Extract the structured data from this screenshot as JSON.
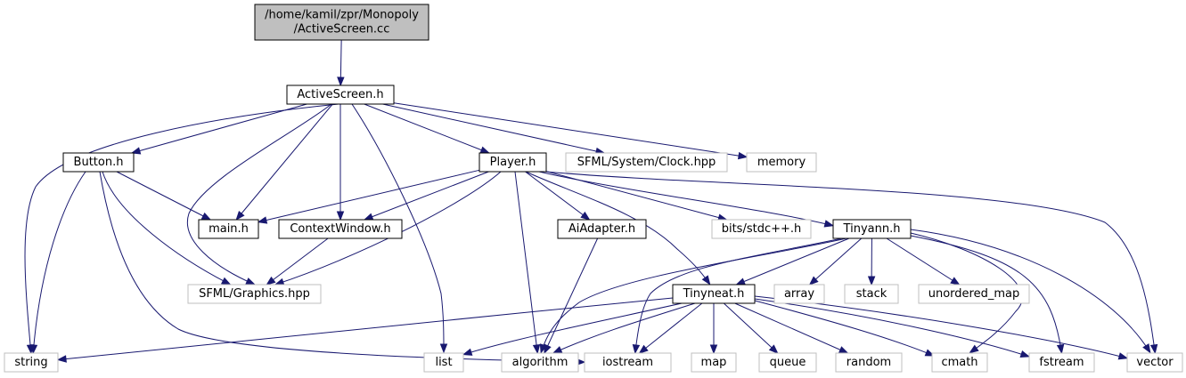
{
  "diagram": {
    "colors": {
      "edge": "#191970",
      "root_fill": "#bfbfbf",
      "root_border": "#000000",
      "internal_border": "#000000",
      "external_border": "#bfbfbf",
      "text": "#000000"
    },
    "nodes": [
      {
        "id": "root",
        "kind": "root",
        "lines": [
          "/home/kamil/zpr/Monopoly",
          "/ActiveScreen.cc"
        ]
      },
      {
        "id": "activescreen_h",
        "kind": "internal",
        "lines": [
          "ActiveScreen.h"
        ]
      },
      {
        "id": "button_h",
        "kind": "internal",
        "lines": [
          "Button.h"
        ]
      },
      {
        "id": "player_h",
        "kind": "internal",
        "lines": [
          "Player.h"
        ]
      },
      {
        "id": "sfml_clock",
        "kind": "external",
        "lines": [
          "SFML/System/Clock.hpp"
        ]
      },
      {
        "id": "memory",
        "kind": "external",
        "lines": [
          "memory"
        ]
      },
      {
        "id": "main_h",
        "kind": "internal",
        "lines": [
          "main.h"
        ]
      },
      {
        "id": "contextwindow_h",
        "kind": "internal",
        "lines": [
          "ContextWindow.h"
        ]
      },
      {
        "id": "aiadapter_h",
        "kind": "internal",
        "lines": [
          "AiAdapter.h"
        ]
      },
      {
        "id": "bits_stdcpp",
        "kind": "external",
        "lines": [
          "bits/stdc++.h"
        ]
      },
      {
        "id": "tinyann_h",
        "kind": "internal",
        "lines": [
          "Tinyann.h"
        ]
      },
      {
        "id": "sfml_graphics",
        "kind": "external",
        "lines": [
          "SFML/Graphics.hpp"
        ]
      },
      {
        "id": "tinyneat_h",
        "kind": "internal",
        "lines": [
          "Tinyneat.h"
        ]
      },
      {
        "id": "array",
        "kind": "external",
        "lines": [
          "array"
        ]
      },
      {
        "id": "stack",
        "kind": "external",
        "lines": [
          "stack"
        ]
      },
      {
        "id": "unordered_map",
        "kind": "external",
        "lines": [
          "unordered_map"
        ]
      },
      {
        "id": "string",
        "kind": "external",
        "lines": [
          "string"
        ]
      },
      {
        "id": "list",
        "kind": "external",
        "lines": [
          "list"
        ]
      },
      {
        "id": "algorithm",
        "kind": "external",
        "lines": [
          "algorithm"
        ]
      },
      {
        "id": "iostream",
        "kind": "external",
        "lines": [
          "iostream"
        ]
      },
      {
        "id": "map",
        "kind": "external",
        "lines": [
          "map"
        ]
      },
      {
        "id": "queue",
        "kind": "external",
        "lines": [
          "queue"
        ]
      },
      {
        "id": "random",
        "kind": "external",
        "lines": [
          "random"
        ]
      },
      {
        "id": "cmath",
        "kind": "external",
        "lines": [
          "cmath"
        ]
      },
      {
        "id": "fstream",
        "kind": "external",
        "lines": [
          "fstream"
        ]
      },
      {
        "id": "vector",
        "kind": "external",
        "lines": [
          "vector"
        ]
      }
    ],
    "edges": [
      {
        "from": "root",
        "to": "activescreen_h"
      },
      {
        "from": "activescreen_h",
        "to": "string"
      },
      {
        "from": "activescreen_h",
        "to": "button_h"
      },
      {
        "from": "activescreen_h",
        "to": "sfml_graphics"
      },
      {
        "from": "activescreen_h",
        "to": "main_h"
      },
      {
        "from": "activescreen_h",
        "to": "contextwindow_h"
      },
      {
        "from": "activescreen_h",
        "to": "list"
      },
      {
        "from": "activescreen_h",
        "to": "player_h"
      },
      {
        "from": "activescreen_h",
        "to": "sfml_clock"
      },
      {
        "from": "activescreen_h",
        "to": "memory"
      },
      {
        "from": "button_h",
        "to": "string"
      },
      {
        "from": "button_h",
        "to": "sfml_graphics"
      },
      {
        "from": "button_h",
        "to": "main_h"
      },
      {
        "from": "button_h",
        "to": "iostream"
      },
      {
        "from": "player_h",
        "to": "main_h"
      },
      {
        "from": "player_h",
        "to": "contextwindow_h"
      },
      {
        "from": "player_h",
        "to": "sfml_graphics"
      },
      {
        "from": "player_h",
        "to": "algorithm"
      },
      {
        "from": "player_h",
        "to": "aiadapter_h"
      },
      {
        "from": "player_h",
        "to": "tinyneat_h"
      },
      {
        "from": "player_h",
        "to": "bits_stdcpp"
      },
      {
        "from": "player_h",
        "to": "tinyann_h"
      },
      {
        "from": "player_h",
        "to": "vector"
      },
      {
        "from": "contextwindow_h",
        "to": "sfml_graphics"
      },
      {
        "from": "aiadapter_h",
        "to": "algorithm"
      },
      {
        "from": "tinyann_h",
        "to": "tinyneat_h"
      },
      {
        "from": "tinyann_h",
        "to": "algorithm"
      },
      {
        "from": "tinyann_h",
        "to": "iostream"
      },
      {
        "from": "tinyann_h",
        "to": "array"
      },
      {
        "from": "tinyann_h",
        "to": "stack"
      },
      {
        "from": "tinyann_h",
        "to": "unordered_map"
      },
      {
        "from": "tinyann_h",
        "to": "cmath"
      },
      {
        "from": "tinyann_h",
        "to": "fstream"
      },
      {
        "from": "tinyann_h",
        "to": "vector"
      },
      {
        "from": "tinyneat_h",
        "to": "string"
      },
      {
        "from": "tinyneat_h",
        "to": "list"
      },
      {
        "from": "tinyneat_h",
        "to": "algorithm"
      },
      {
        "from": "tinyneat_h",
        "to": "iostream"
      },
      {
        "from": "tinyneat_h",
        "to": "map"
      },
      {
        "from": "tinyneat_h",
        "to": "queue"
      },
      {
        "from": "tinyneat_h",
        "to": "random"
      },
      {
        "from": "tinyneat_h",
        "to": "cmath"
      },
      {
        "from": "tinyneat_h",
        "to": "fstream"
      },
      {
        "from": "tinyneat_h",
        "to": "vector"
      }
    ]
  }
}
